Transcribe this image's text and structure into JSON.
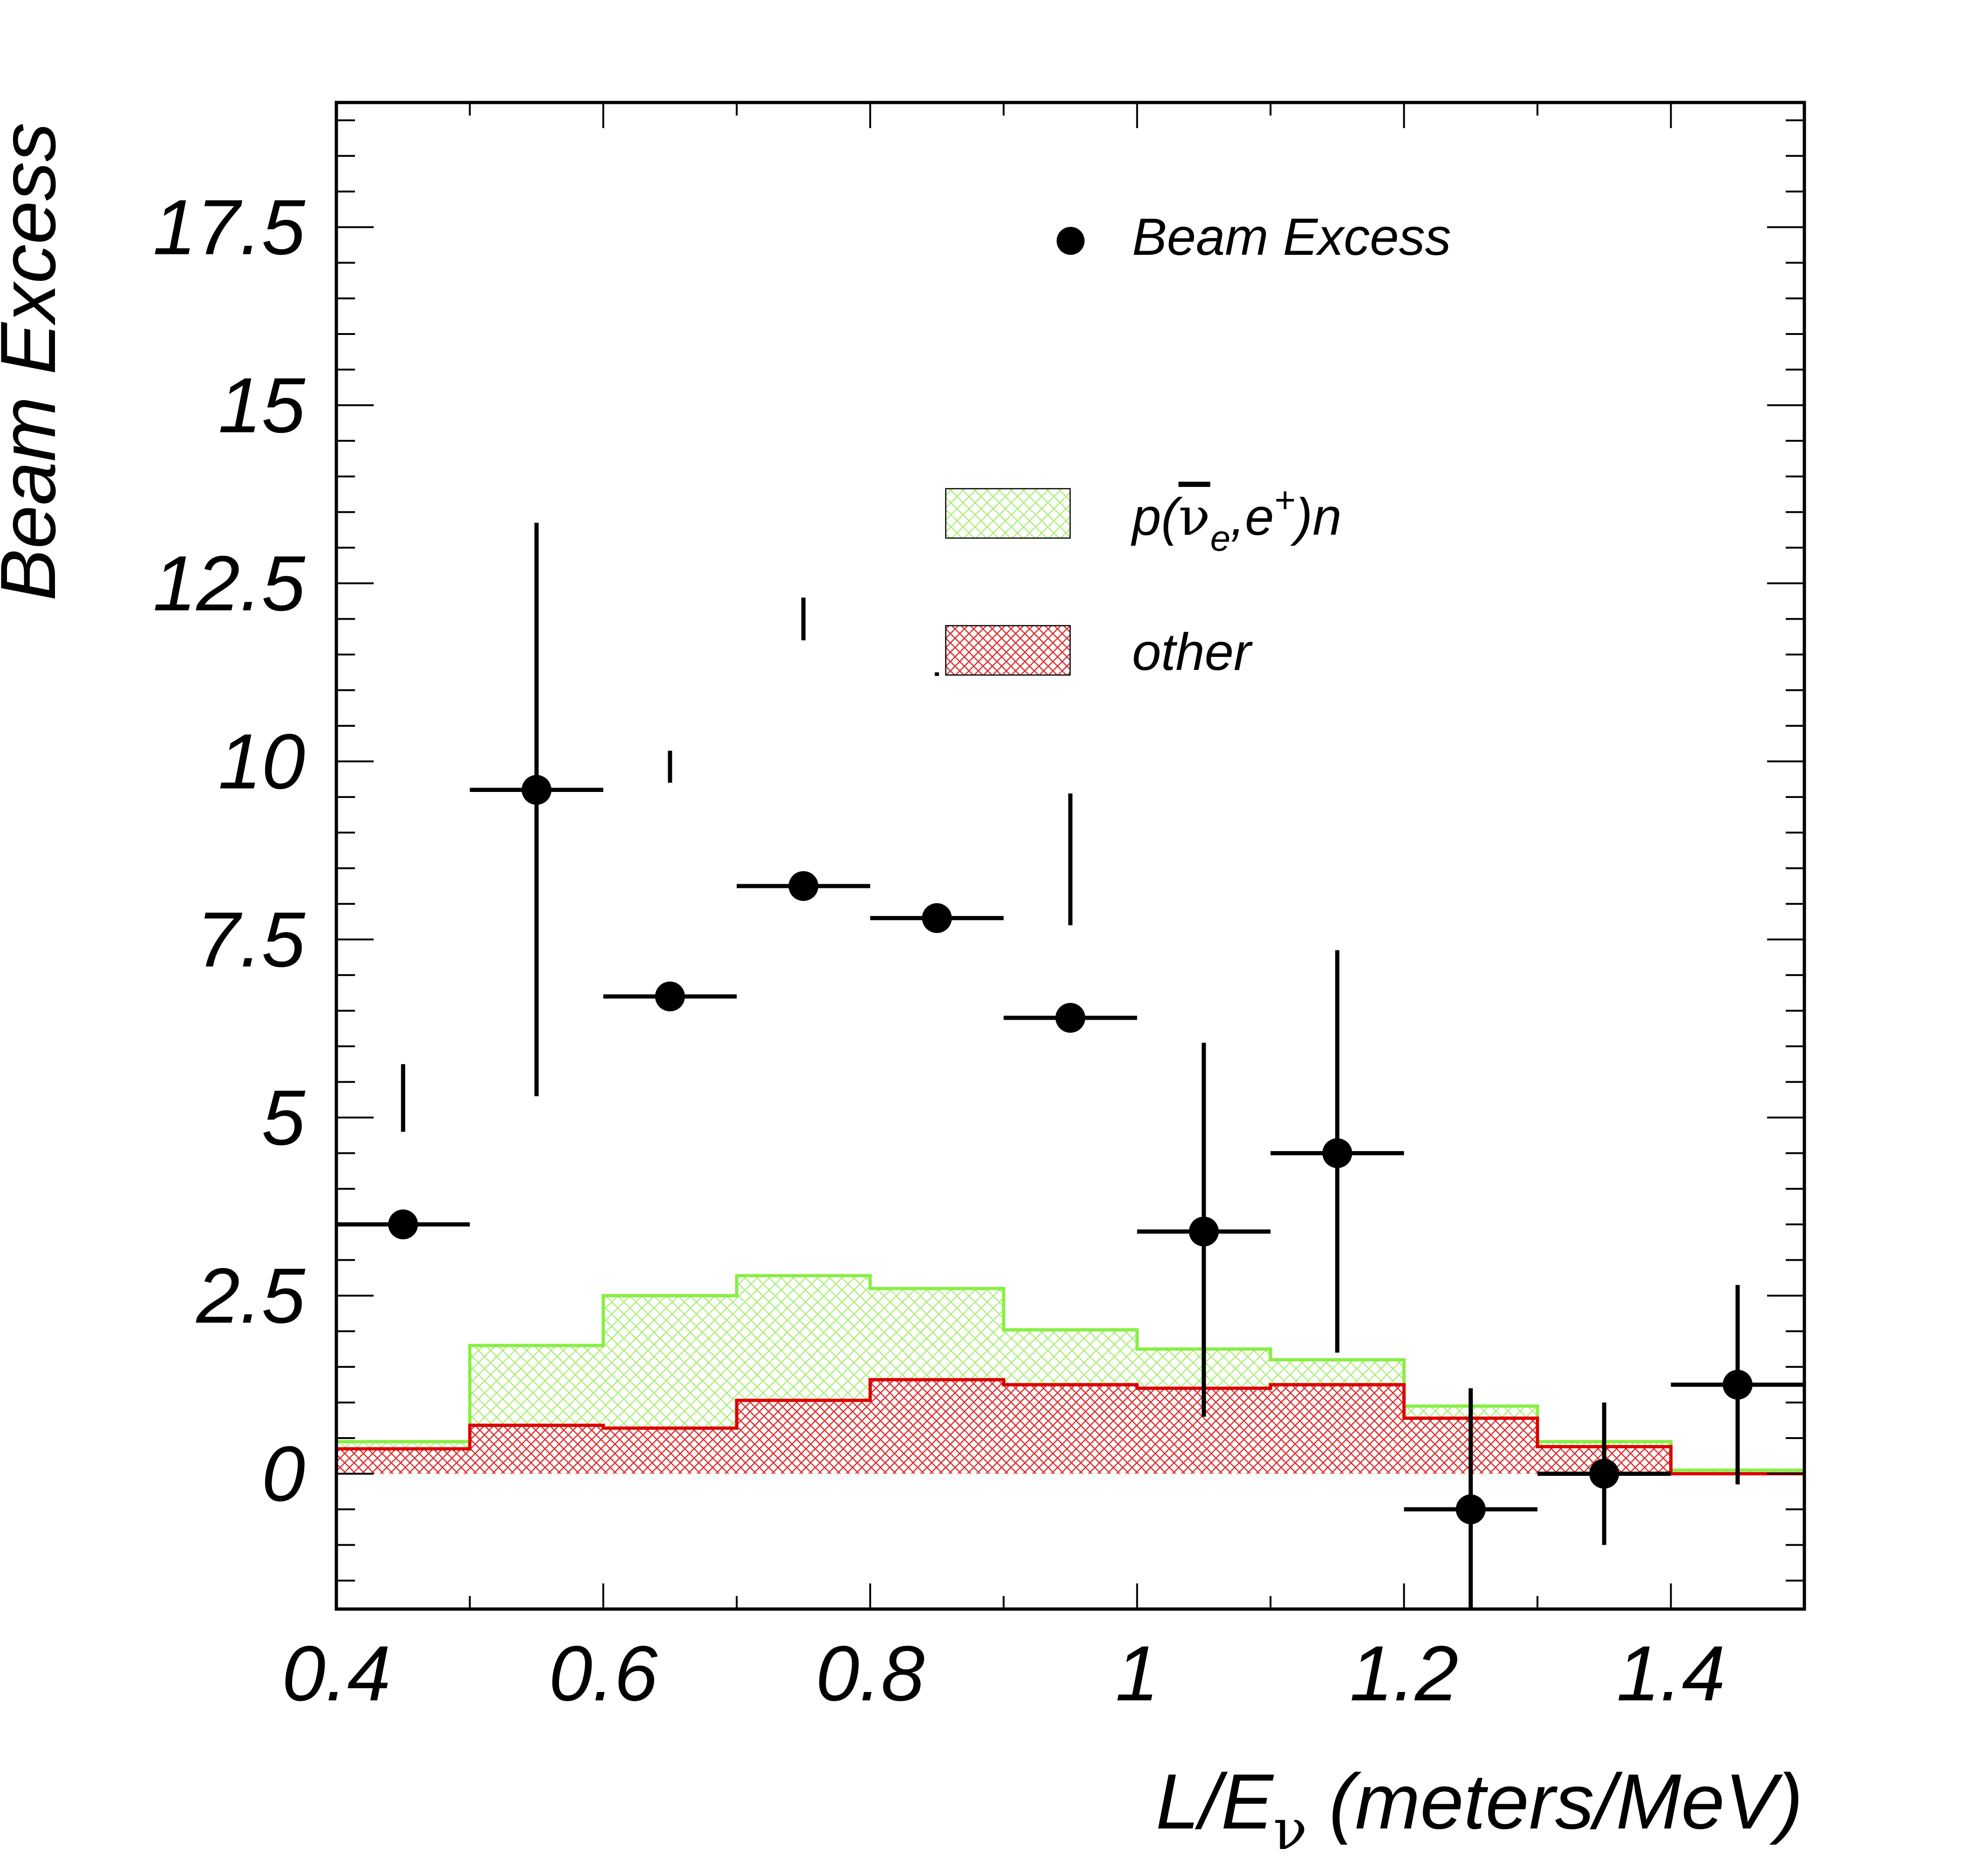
{
  "colors": {
    "background": "#ffffff",
    "axis": "#000000",
    "data": "#000000",
    "signal_line": "#88ee44",
    "signal_hatch": "#aaee77",
    "other_line": "#dd0000",
    "other_hatch": "#dd3333"
  },
  "chart_data": {
    "type": "histogram+errorbar",
    "title": "",
    "xlabel_main": "L/E",
    "xlabel_sub": "ν",
    "xlabel_unit": "(meters/MeV)",
    "ylabel": "Beam Excess",
    "xlim": [
      0.4,
      1.5
    ],
    "ylim": [
      -1.9,
      19.25
    ],
    "x_ticks": [
      0.4,
      0.6,
      0.8,
      1.0,
      1.2,
      1.4
    ],
    "x_tick_labels": [
      "0.4",
      "0.6",
      "0.8",
      "1",
      "1.2",
      "1.4"
    ],
    "y_ticks": [
      0,
      2.5,
      5,
      7.5,
      10,
      12.5,
      15,
      17.5
    ],
    "y_tick_labels": [
      "0",
      "2.5",
      "5",
      "7.5",
      "10",
      "12.5",
      "15",
      "17.5"
    ],
    "bin_edges": [
      0.4,
      0.5,
      0.6,
      0.7,
      0.8,
      0.9,
      1.0,
      1.1,
      1.2,
      1.3,
      1.4,
      1.5
    ],
    "series": [
      {
        "name": "Beam Excess",
        "kind": "points",
        "x": [
          0.45,
          0.55,
          0.65,
          0.75,
          0.85,
          0.95,
          1.05,
          1.15,
          1.25,
          1.35,
          1.45
        ],
        "y": [
          3.5,
          9.6,
          6.7,
          8.25,
          7.8,
          6.4,
          3.4,
          4.5,
          -0.5,
          0.0,
          1.25
        ],
        "yerr_low": [
          4.8,
          5.3,
          9.7,
          12.3,
          11.2,
          7.7,
          0.8,
          1.7,
          -1.9,
          -1.0,
          -0.15
        ],
        "yerr_high": [
          5.75,
          13.35,
          10.15,
          11.7,
          11.25,
          9.55,
          6.05,
          7.35,
          1.2,
          1.0,
          2.65
        ]
      },
      {
        "name": "p(ν̄e,e+)n",
        "kind": "stacked-histogram-total",
        "values": [
          0.45,
          1.8,
          2.5,
          2.78,
          2.6,
          2.02,
          1.75,
          1.6,
          0.95,
          0.45,
          0.05
        ]
      },
      {
        "name": "other",
        "kind": "histogram",
        "values": [
          0.35,
          0.68,
          0.64,
          1.03,
          1.32,
          1.25,
          1.2,
          1.25,
          0.78,
          0.38,
          0.0
        ]
      }
    ],
    "legend": {
      "position": "top-right",
      "entries": [
        {
          "marker": "circle",
          "label": "Beam Excess"
        },
        {
          "marker": "signal-hatch",
          "label_main": "p(",
          "nu": "ν",
          "sub_e": "e",
          "comma": ",e",
          "sup_plus": "+",
          "label_end": ")n"
        },
        {
          "marker": "other-hatch",
          "label": "other"
        }
      ]
    }
  }
}
